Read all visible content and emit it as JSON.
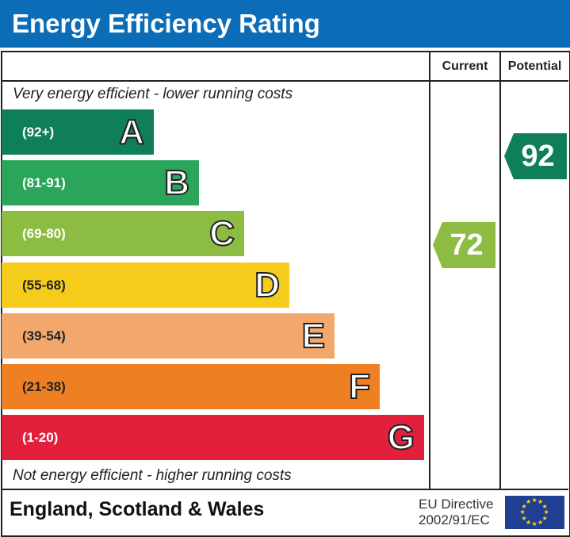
{
  "title": "Energy Efficiency Rating",
  "columns": {
    "current": "Current",
    "potential": "Potential"
  },
  "top_note": "Very energy efficient - lower running costs",
  "bottom_note": "Not energy efficient - higher running costs",
  "footer": {
    "region": "England, Scotland & Wales",
    "directive_line1": "EU Directive",
    "directive_line2": "2002/91/EC"
  },
  "chart_data": {
    "type": "bar",
    "bands": [
      {
        "letter": "A",
        "range": "(92+)",
        "color": "#0f7f5a"
      },
      {
        "letter": "B",
        "range": "(81-91)",
        "color": "#2aa55a"
      },
      {
        "letter": "C",
        "range": "(69-80)",
        "color": "#8cbc42"
      },
      {
        "letter": "D",
        "range": "(55-68)",
        "color": "#f5cc1b"
      },
      {
        "letter": "E",
        "range": "(39-54)",
        "color": "#f2a86d"
      },
      {
        "letter": "F",
        "range": "(21-38)",
        "color": "#ee7f23"
      },
      {
        "letter": "G",
        "range": "(1-20)",
        "color": "#e2203c"
      }
    ],
    "current": {
      "value": "72",
      "band": "C"
    },
    "potential": {
      "value": "92",
      "band": "A"
    }
  }
}
